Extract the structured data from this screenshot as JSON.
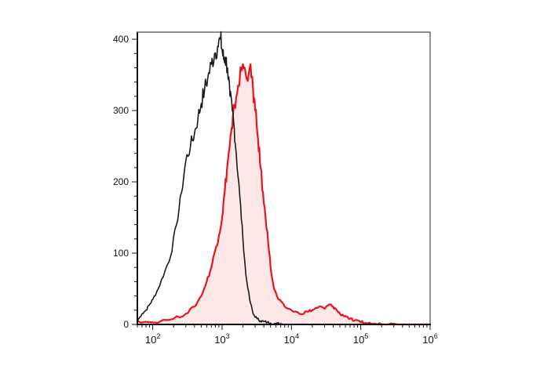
{
  "chart_data": {
    "type": "line",
    "title": "",
    "xlabel": "",
    "ylabel": "",
    "x_scale": "log",
    "xlim": [
      60,
      1000000
    ],
    "ylim": [
      0,
      410
    ],
    "grid": false,
    "legend": "none",
    "x_ticks": [
      {
        "base": "10",
        "exp": "2",
        "value": 100
      },
      {
        "base": "10",
        "exp": "3",
        "value": 1000
      },
      {
        "base": "10",
        "exp": "4",
        "value": 10000
      },
      {
        "base": "10",
        "exp": "5",
        "value": 100000
      },
      {
        "base": "10",
        "exp": "6",
        "value": 1000000
      }
    ],
    "y_ticks": [
      {
        "label": "0",
        "value": 0
      },
      {
        "label": "100",
        "value": 100
      },
      {
        "label": "200",
        "value": 200
      },
      {
        "label": "300",
        "value": 300
      },
      {
        "label": "400",
        "value": 400
      }
    ],
    "series": [
      {
        "color": "#1a1a1a",
        "filled": false,
        "x": [
          60,
          70,
          80,
          90,
          100,
          120,
          150,
          180,
          220,
          260,
          300,
          350,
          400,
          450,
          500,
          560,
          620,
          700,
          780,
          860,
          950,
          1000,
          1050,
          1100,
          1200,
          1300,
          1400,
          1500,
          1600,
          1800,
          2000,
          2200,
          2500,
          2800,
          3200,
          3600,
          4000,
          4500,
          5000,
          6000,
          7000,
          8000,
          9000
        ],
        "values": [
          5,
          15,
          20,
          28,
          35,
          50,
          75,
          95,
          140,
          185,
          230,
          250,
          268,
          290,
          310,
          330,
          345,
          365,
          380,
          390,
          400,
          385,
          372,
          375,
          360,
          320,
          300,
          275,
          240,
          180,
          120,
          70,
          35,
          15,
          8,
          5,
          4,
          3,
          2,
          1,
          1,
          0,
          0
        ]
      },
      {
        "color": "#e8141b",
        "filled": true,
        "fill": "#fde8e8",
        "x": [
          60,
          100,
          200,
          300,
          400,
          500,
          600,
          700,
          800,
          900,
          1000,
          1100,
          1200,
          1300,
          1400,
          1500,
          1700,
          2000,
          2200,
          2500,
          2800,
          3000,
          3300,
          3600,
          4000,
          4500,
          5000,
          5600,
          6500,
          8000,
          10000,
          13000,
          17000,
          20000,
          25000,
          30000,
          35000,
          40000,
          45000,
          50000,
          60000,
          70000,
          80000,
          100000,
          120000,
          150000,
          200000,
          300000,
          500000,
          1000000
        ],
        "values": [
          5,
          3,
          8,
          15,
          25,
          40,
          60,
          80,
          105,
          125,
          150,
          190,
          225,
          255,
          275,
          305,
          335,
          365,
          350,
          360,
          330,
          300,
          260,
          220,
          170,
          130,
          80,
          50,
          35,
          25,
          20,
          15,
          18,
          20,
          25,
          22,
          28,
          25,
          20,
          15,
          12,
          8,
          5,
          3,
          2,
          1,
          0,
          1,
          0,
          0
        ]
      }
    ]
  }
}
